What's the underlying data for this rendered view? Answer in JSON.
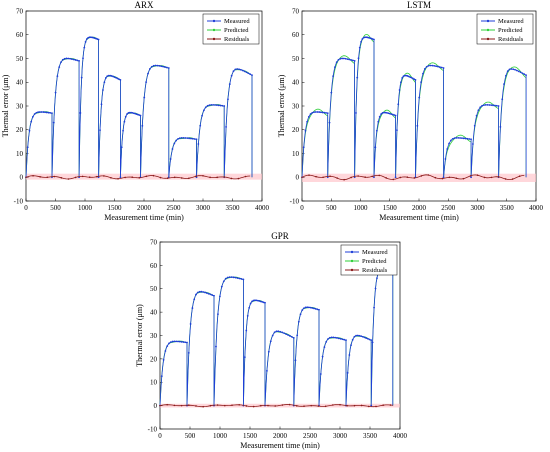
{
  "colors": {
    "measured": "#1f3fd8",
    "predicted": "#2fcf3a",
    "residuals": "#8b1a1a",
    "residual_band": "#ffc6cc",
    "axis": "#000000"
  },
  "legend": [
    "Measured",
    "Predicted",
    "Residuals"
  ],
  "chart_data": [
    {
      "type": "line",
      "title": "ARX",
      "xlabel": "Measurement time (min)",
      "ylabel": "Thermal error (μm)",
      "xlim": [
        0,
        4000
      ],
      "ylim": [
        -10,
        70
      ],
      "xticks": [
        0,
        500,
        1000,
        1500,
        2000,
        2500,
        3000,
        3500,
        4000
      ],
      "yticks": [
        -10,
        0,
        10,
        20,
        30,
        40,
        50,
        60,
        70
      ],
      "grid": false,
      "legend_position": "top-right",
      "segments": [
        {
          "start": 0,
          "end": 440,
          "peak": 28,
          "final": 27
        },
        {
          "start": 440,
          "end": 900,
          "peak": 51,
          "final": 49
        },
        {
          "start": 900,
          "end": 1230,
          "peak": 60,
          "final": 58
        },
        {
          "start": 1230,
          "end": 1600,
          "peak": 44,
          "final": 41
        },
        {
          "start": 1600,
          "end": 1940,
          "peak": 28,
          "final": 26
        },
        {
          "start": 1940,
          "end": 2420,
          "peak": 48,
          "final": 46
        },
        {
          "start": 2420,
          "end": 2890,
          "peak": 17,
          "final": 16
        },
        {
          "start": 2890,
          "end": 3360,
          "peak": 31,
          "final": 30
        },
        {
          "start": 3360,
          "end": 3830,
          "peak": 47,
          "final": 43
        }
      ],
      "residuals": {
        "level": 0,
        "band": [
          -1,
          1.5
        ]
      }
    },
    {
      "type": "line",
      "title": "LSTM",
      "xlabel": "Measurement time (min)",
      "ylabel": "Thermal error (μm)",
      "xlim": [
        0,
        4000
      ],
      "ylim": [
        -10,
        70
      ],
      "xticks": [
        0,
        500,
        1000,
        1500,
        2000,
        2500,
        3000,
        3500,
        4000
      ],
      "yticks": [
        -10,
        0,
        10,
        20,
        30,
        40,
        50,
        60,
        70
      ],
      "grid": false,
      "legend_position": "top-right",
      "segments": [
        {
          "start": 0,
          "end": 440,
          "peak": 28,
          "final": 27
        },
        {
          "start": 440,
          "end": 900,
          "peak": 51,
          "final": 49
        },
        {
          "start": 900,
          "end": 1230,
          "peak": 60,
          "final": 58
        },
        {
          "start": 1230,
          "end": 1600,
          "peak": 28,
          "final": 26
        },
        {
          "start": 1600,
          "end": 1940,
          "peak": 44,
          "final": 41
        },
        {
          "start": 1940,
          "end": 2420,
          "peak": 48,
          "final": 46
        },
        {
          "start": 2420,
          "end": 2890,
          "peak": 17,
          "final": 16
        },
        {
          "start": 2890,
          "end": 3360,
          "peak": 31,
          "final": 30
        },
        {
          "start": 3360,
          "end": 3830,
          "peak": 47,
          "final": 43
        }
      ],
      "residuals": {
        "level": 0,
        "band": [
          -2,
          1.5
        ]
      }
    },
    {
      "type": "line",
      "title": "GPR",
      "xlabel": "Measurement time (min)",
      "ylabel": "Thermal error (μm)",
      "xlim": [
        0,
        4000
      ],
      "ylim": [
        -10,
        70
      ],
      "xticks": [
        0,
        500,
        1000,
        1500,
        2000,
        2500,
        3000,
        3500,
        4000
      ],
      "yticks": [
        -10,
        0,
        10,
        20,
        30,
        40,
        50,
        60,
        70
      ],
      "grid": false,
      "legend_position": "top-right",
      "segments": [
        {
          "start": 0,
          "end": 450,
          "peak": 28,
          "final": 27
        },
        {
          "start": 450,
          "end": 900,
          "peak": 50,
          "final": 47
        },
        {
          "start": 900,
          "end": 1390,
          "peak": 56,
          "final": 54
        },
        {
          "start": 1390,
          "end": 1750,
          "peak": 46,
          "final": 44
        },
        {
          "start": 1750,
          "end": 2230,
          "peak": 33,
          "final": 29
        },
        {
          "start": 2230,
          "end": 2650,
          "peak": 43,
          "final": 41
        },
        {
          "start": 2650,
          "end": 3100,
          "peak": 30,
          "final": 28
        },
        {
          "start": 3100,
          "end": 3520,
          "peak": 31,
          "final": 28
        },
        {
          "start": 3520,
          "end": 3880,
          "peak": 60,
          "final": 57
        }
      ],
      "residuals": {
        "level": 0,
        "band": [
          -0.8,
          0.8
        ]
      }
    }
  ]
}
